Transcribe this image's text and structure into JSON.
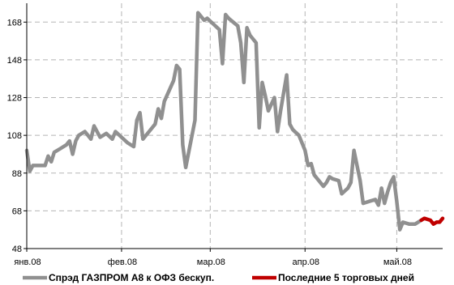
{
  "chart_data": {
    "type": "line",
    "y_ticks": [
      48,
      68,
      88,
      108,
      128,
      148,
      168
    ],
    "ylim": [
      48,
      178
    ],
    "x_ticks": [
      {
        "label": "янв.08",
        "date": "2008-01-01"
      },
      {
        "label": "фев.08",
        "date": "2008-02-01"
      },
      {
        "label": "мар.08",
        "date": "2008-03-01"
      },
      {
        "label": "апр.08",
        "date": "2008-04-01"
      },
      {
        "label": "май.08",
        "date": "2008-05-01"
      }
    ],
    "xlim": [
      "2008-01-01",
      "2008-05-16"
    ],
    "grid": true,
    "legend_position": "bottom",
    "series": [
      {
        "name": "Спрэд ГАЗПРОМ А8 к ОФЗ бескуп.",
        "color": "#909090",
        "points": [
          [
            "2008-01-01",
            100
          ],
          [
            "2008-01-02",
            89
          ],
          [
            "2008-01-03",
            92
          ],
          [
            "2008-01-05",
            92
          ],
          [
            "2008-01-07",
            92
          ],
          [
            "2008-01-08",
            97
          ],
          [
            "2008-01-09",
            94
          ],
          [
            "2008-01-10",
            99
          ],
          [
            "2008-01-12",
            101
          ],
          [
            "2008-01-14",
            103
          ],
          [
            "2008-01-15",
            105
          ],
          [
            "2008-01-16",
            98
          ],
          [
            "2008-01-17",
            105
          ],
          [
            "2008-01-18",
            108
          ],
          [
            "2008-01-20",
            110
          ],
          [
            "2008-01-22",
            106
          ],
          [
            "2008-01-23",
            113
          ],
          [
            "2008-01-25",
            107
          ],
          [
            "2008-01-27",
            109
          ],
          [
            "2008-01-29",
            106
          ],
          [
            "2008-01-30",
            110
          ],
          [
            "2008-02-01",
            107
          ],
          [
            "2008-02-03",
            104
          ],
          [
            "2008-02-05",
            102
          ],
          [
            "2008-02-06",
            116
          ],
          [
            "2008-02-07",
            120
          ],
          [
            "2008-02-08",
            106
          ],
          [
            "2008-02-10",
            110
          ],
          [
            "2008-02-12",
            114
          ],
          [
            "2008-02-13",
            122
          ],
          [
            "2008-02-14",
            117
          ],
          [
            "2008-02-15",
            126
          ],
          [
            "2008-02-18",
            137
          ],
          [
            "2008-02-19",
            145
          ],
          [
            "2008-02-20",
            143
          ],
          [
            "2008-02-21",
            103
          ],
          [
            "2008-02-22",
            91
          ],
          [
            "2008-02-25",
            116
          ],
          [
            "2008-02-26",
            173
          ],
          [
            "2008-02-27",
            171
          ],
          [
            "2008-02-28",
            169
          ],
          [
            "2008-02-29",
            170
          ],
          [
            "2008-03-02",
            167
          ],
          [
            "2008-03-04",
            164
          ],
          [
            "2008-03-05",
            146
          ],
          [
            "2008-03-06",
            172
          ],
          [
            "2008-03-07",
            170
          ],
          [
            "2008-03-10",
            166
          ],
          [
            "2008-03-11",
            157
          ],
          [
            "2008-03-12",
            136
          ],
          [
            "2008-03-13",
            165
          ],
          [
            "2008-03-14",
            161
          ],
          [
            "2008-03-16",
            157
          ],
          [
            "2008-03-17",
            112
          ],
          [
            "2008-03-18",
            136
          ],
          [
            "2008-03-19",
            129
          ],
          [
            "2008-03-20",
            121
          ],
          [
            "2008-03-22",
            128
          ],
          [
            "2008-03-23",
            110
          ],
          [
            "2008-03-24",
            121
          ],
          [
            "2008-03-26",
            140
          ],
          [
            "2008-03-27",
            114
          ],
          [
            "2008-03-28",
            111
          ],
          [
            "2008-03-30",
            108
          ],
          [
            "2008-04-01",
            100
          ],
          [
            "2008-04-02",
            92
          ],
          [
            "2008-04-03",
            93
          ],
          [
            "2008-04-04",
            87
          ],
          [
            "2008-04-07",
            81
          ],
          [
            "2008-04-08",
            83
          ],
          [
            "2008-04-09",
            86
          ],
          [
            "2008-04-10",
            85
          ],
          [
            "2008-04-12",
            84
          ],
          [
            "2008-04-13",
            77
          ],
          [
            "2008-04-15",
            80
          ],
          [
            "2008-04-16",
            83
          ],
          [
            "2008-04-17",
            100
          ],
          [
            "2008-04-18",
            92
          ],
          [
            "2008-04-19",
            84
          ],
          [
            "2008-04-20",
            72
          ],
          [
            "2008-04-22",
            73
          ],
          [
            "2008-04-24",
            74
          ],
          [
            "2008-04-25",
            71
          ],
          [
            "2008-04-26",
            80
          ],
          [
            "2008-04-27",
            72
          ],
          [
            "2008-04-28",
            78
          ],
          [
            "2008-04-29",
            83
          ],
          [
            "2008-04-30",
            86
          ],
          [
            "2008-05-01",
            73
          ],
          [
            "2008-05-02",
            58
          ],
          [
            "2008-05-03",
            62
          ],
          [
            "2008-05-05",
            61
          ],
          [
            "2008-05-07",
            61
          ],
          [
            "2008-05-09",
            63
          ]
        ]
      },
      {
        "name": "Последние 5 торговых дней",
        "color": "#c00000",
        "points": [
          [
            "2008-05-09",
            63
          ],
          [
            "2008-05-10",
            64
          ],
          [
            "2008-05-12",
            63
          ],
          [
            "2008-05-13",
            61
          ],
          [
            "2008-05-14",
            62
          ],
          [
            "2008-05-15",
            62
          ],
          [
            "2008-05-16",
            64
          ]
        ]
      }
    ]
  }
}
